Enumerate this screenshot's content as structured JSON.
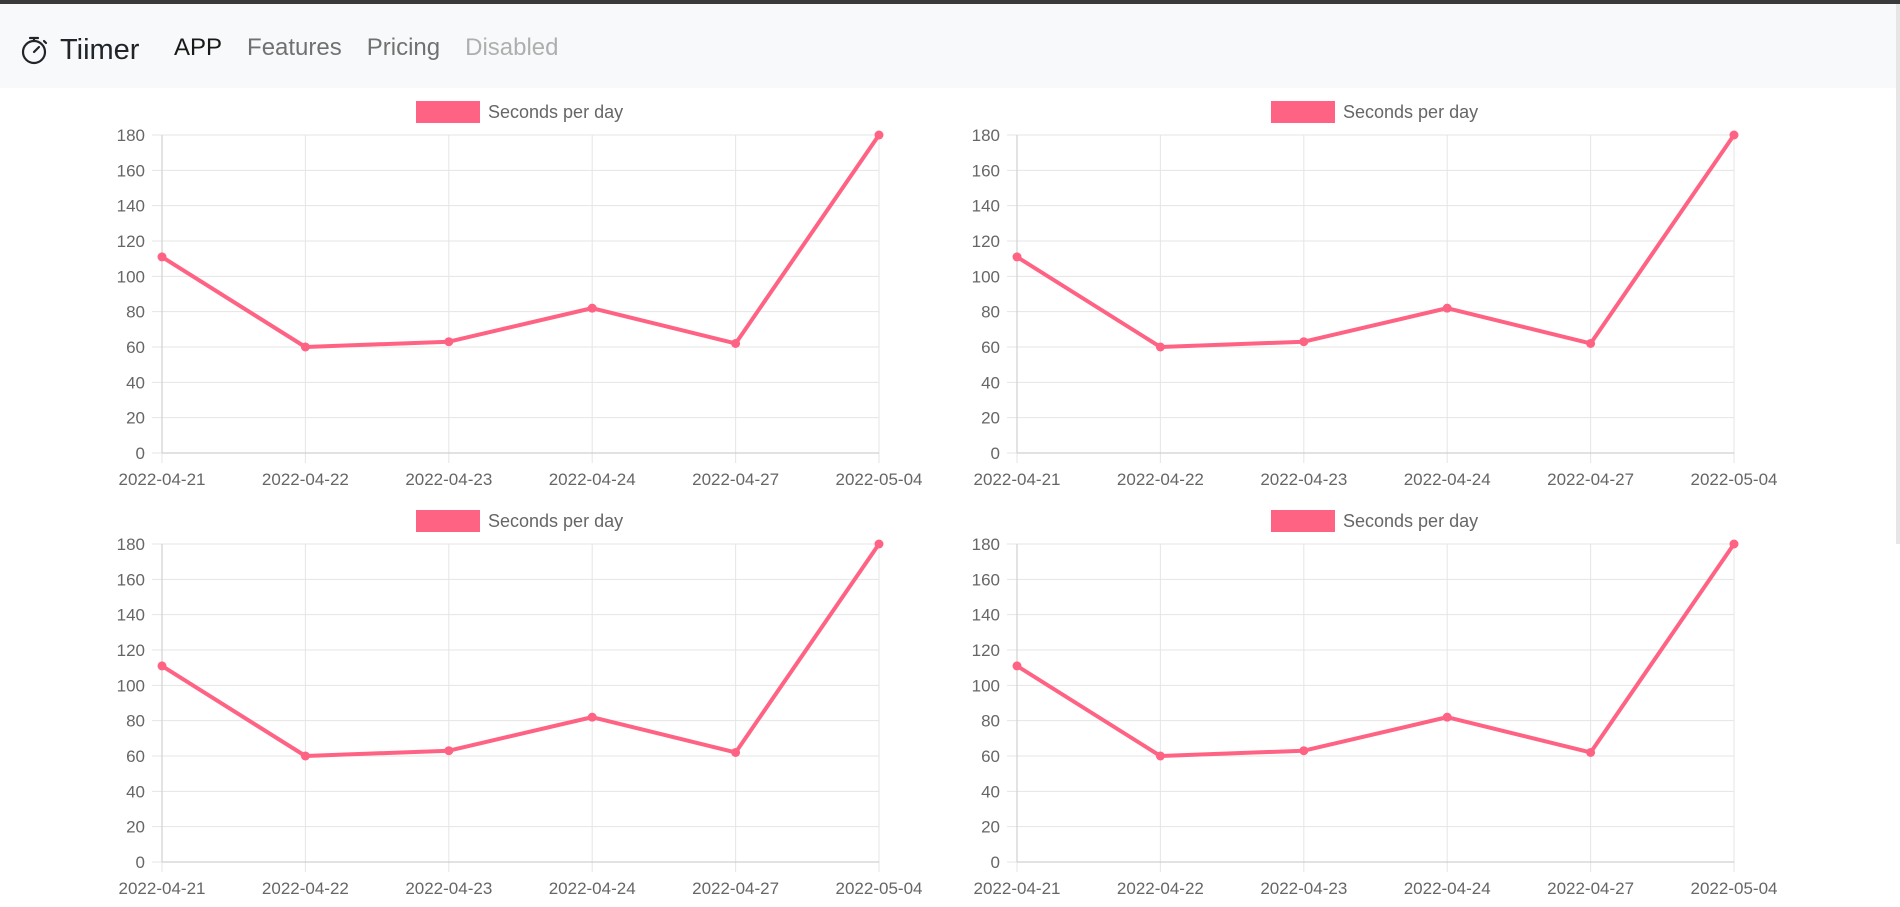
{
  "app": {
    "name": "Tiimer",
    "icon": "stopwatch-icon"
  },
  "nav": {
    "items": [
      {
        "label": "APP",
        "state": "active"
      },
      {
        "label": "Features",
        "state": "normal"
      },
      {
        "label": "Pricing",
        "state": "normal"
      },
      {
        "label": "Disabled",
        "state": "disabled"
      }
    ]
  },
  "colors": {
    "series": "#ff6384",
    "grid": "#e5e5e5",
    "axis_text": "#666666",
    "navbar_bg": "#f8f9fa"
  },
  "chart_data": [
    {
      "type": "line",
      "x": [
        "2022-04-21",
        "2022-04-22",
        "2022-04-23",
        "2022-04-24",
        "2022-04-27",
        "2022-05-04"
      ],
      "series": [
        {
          "name": "Seconds per day",
          "values": [
            111,
            60,
            63,
            82,
            62,
            180
          ]
        }
      ],
      "ylim": [
        0,
        180
      ],
      "yticks": [
        0,
        20,
        40,
        60,
        80,
        100,
        120,
        140,
        160,
        180
      ],
      "grid": true,
      "legend": "top"
    },
    {
      "type": "line",
      "x": [
        "2022-04-21",
        "2022-04-22",
        "2022-04-23",
        "2022-04-24",
        "2022-04-27",
        "2022-05-04"
      ],
      "series": [
        {
          "name": "Seconds per day",
          "values": [
            111,
            60,
            63,
            82,
            62,
            180
          ]
        }
      ],
      "ylim": [
        0,
        180
      ],
      "yticks": [
        0,
        20,
        40,
        60,
        80,
        100,
        120,
        140,
        160,
        180
      ],
      "grid": true,
      "legend": "top"
    },
    {
      "type": "line",
      "x": [
        "2022-04-21",
        "2022-04-22",
        "2022-04-23",
        "2022-04-24",
        "2022-04-27",
        "2022-05-04"
      ],
      "series": [
        {
          "name": "Seconds per day",
          "values": [
            111,
            60,
            63,
            82,
            62,
            180
          ]
        }
      ],
      "ylim": [
        0,
        180
      ],
      "yticks": [
        0,
        20,
        40,
        60,
        80,
        100,
        120,
        140,
        160,
        180
      ],
      "grid": true,
      "legend": "top"
    },
    {
      "type": "line",
      "x": [
        "2022-04-21",
        "2022-04-22",
        "2022-04-23",
        "2022-04-24",
        "2022-04-27",
        "2022-05-04"
      ],
      "series": [
        {
          "name": "Seconds per day",
          "values": [
            111,
            60,
            63,
            82,
            62,
            180
          ]
        }
      ],
      "ylim": [
        0,
        180
      ],
      "yticks": [
        0,
        20,
        40,
        60,
        80,
        100,
        120,
        140,
        160,
        180
      ],
      "grid": true,
      "legend": "top"
    }
  ]
}
